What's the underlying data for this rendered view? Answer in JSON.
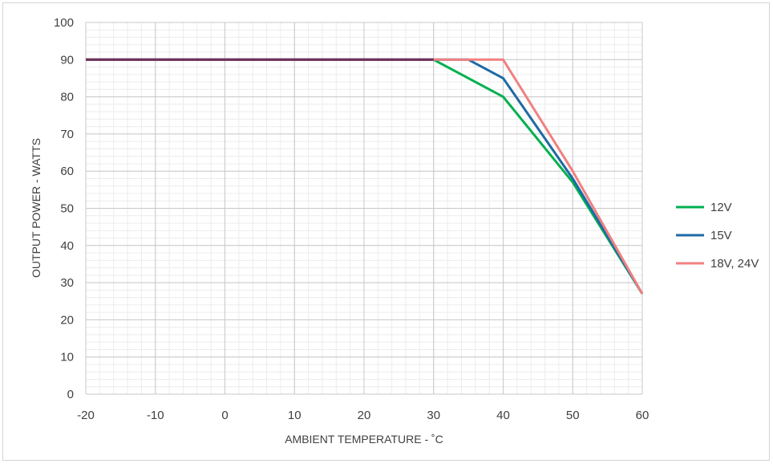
{
  "chart_data": {
    "type": "line",
    "title": "",
    "xlabel": "AMBIENT TEMPERATURE - ˚C",
    "ylabel": "OUTPUT POWER  - WATTS",
    "xlim": [
      -20,
      60
    ],
    "ylim": [
      0,
      100
    ],
    "x_ticks": [
      "-20",
      "-10",
      "0",
      "10",
      "20",
      "30",
      "40",
      "50",
      "60"
    ],
    "y_ticks": [
      "0",
      "10",
      "20",
      "30",
      "40",
      "50",
      "60",
      "70",
      "80",
      "90",
      "100"
    ],
    "grid": "major and minor",
    "legend_position": "right",
    "series": [
      {
        "name": "12V",
        "color": "#00b050",
        "x": [
          -20,
          30,
          40,
          50,
          60
        ],
        "y": [
          90,
          90,
          80,
          57,
          27
        ]
      },
      {
        "name": "15V",
        "color": "#1f6aa5",
        "x": [
          -20,
          35,
          40,
          50,
          60
        ],
        "y": [
          90,
          90,
          85,
          58,
          27
        ]
      },
      {
        "name": "18V, 24V",
        "color": "#f08080",
        "x": [
          -20,
          40,
          50,
          60
        ],
        "y": [
          90,
          90,
          60,
          27
        ]
      }
    ]
  }
}
